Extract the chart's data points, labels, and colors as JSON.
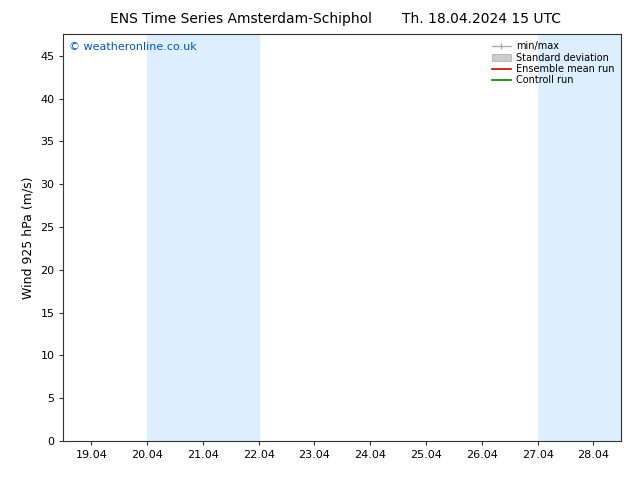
{
  "title_left": "ENS Time Series Amsterdam-Schiphol",
  "title_right": "Th. 18.04.2024 15 UTC",
  "ylabel": "Wind 925 hPa (m/s)",
  "copyright": "© weatheronline.co.uk",
  "x_ticks_labels": [
    "19.04",
    "20.04",
    "21.04",
    "22.04",
    "23.04",
    "24.04",
    "25.04",
    "26.04",
    "27.04",
    "28.04"
  ],
  "x_tick_positions": [
    0,
    1,
    2,
    3,
    4,
    5,
    6,
    7,
    8,
    9
  ],
  "xlim": [
    -0.5,
    9.5
  ],
  "ylim": [
    0,
    47.5
  ],
  "yticks": [
    0,
    5,
    10,
    15,
    20,
    25,
    30,
    35,
    40,
    45
  ],
  "shade_bands": [
    [
      1.0,
      2.0
    ],
    [
      2.0,
      3.0
    ],
    [
      8.0,
      9.0
    ],
    [
      9.0,
      9.5
    ]
  ],
  "shade_color": "#ddeeff",
  "bg_color": "#ffffff",
  "title_fontsize": 10,
  "ylabel_fontsize": 9,
  "tick_fontsize": 8,
  "copyright_color": "#0055bb",
  "copyright_fontsize": 8
}
